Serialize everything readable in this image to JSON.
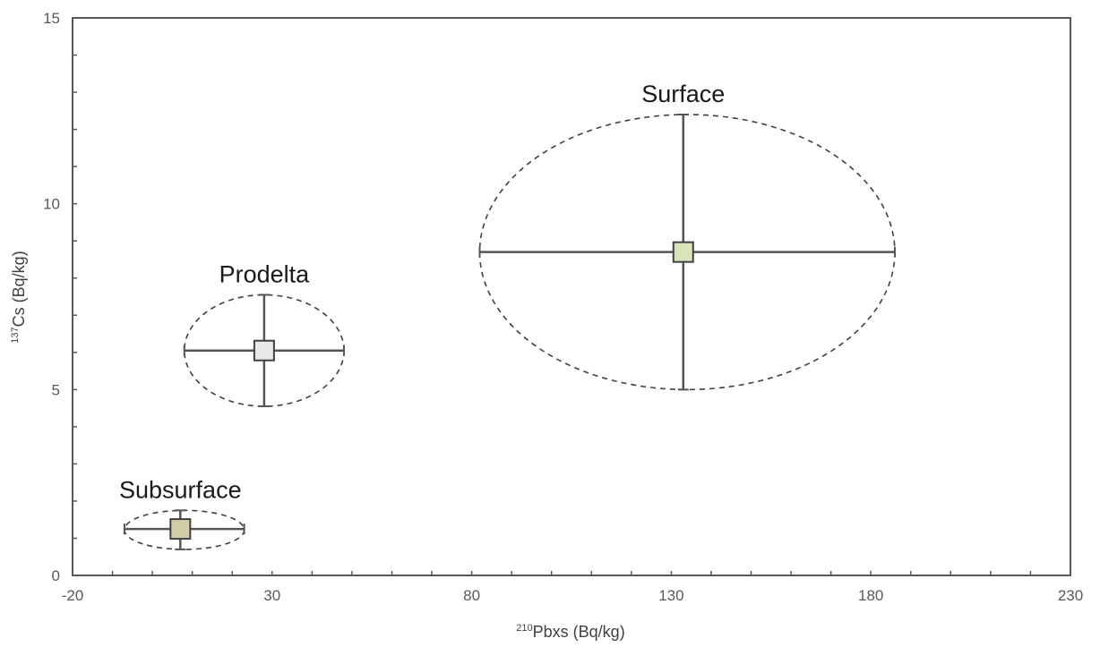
{
  "chart_data": {
    "type": "scatter",
    "title": "",
    "xlabel_sup": "210",
    "xlabel": "Pbxs (Bq/kg)",
    "ylabel_sup": "137",
    "ylabel": "Cs (Bq/kg)",
    "xlim": [
      -20,
      230
    ],
    "ylim": [
      0,
      15
    ],
    "xticks": [
      -20,
      30,
      80,
      130,
      180,
      230
    ],
    "yticks": [
      0,
      5,
      10,
      15
    ],
    "x_minor_step": 10,
    "y_minor_step": 1,
    "grid": false,
    "legend": "none",
    "points": [
      {
        "label": "Surface",
        "x": 133,
        "y": 8.7,
        "x_low": 82,
        "x_high": 186,
        "y_low": 5.0,
        "y_high": 12.4,
        "color": "#d8e4bc"
      },
      {
        "label": "Prodelta",
        "x": 28,
        "y": 6.05,
        "x_low": 8,
        "x_high": 48,
        "y_low": 4.55,
        "y_high": 7.55,
        "color": "#e8e8e8"
      },
      {
        "label": "Subsurface",
        "x": 7,
        "y": 1.25,
        "x_low": -7,
        "x_high": 23,
        "y_low": 0.7,
        "y_high": 1.75,
        "color": "#d2cda8"
      }
    ]
  }
}
